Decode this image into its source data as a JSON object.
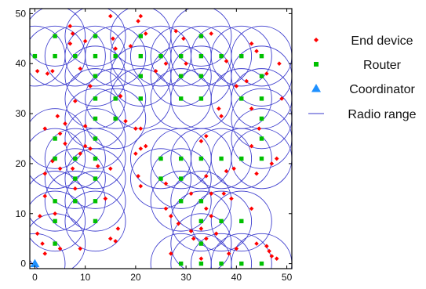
{
  "chart_data": {
    "type": "scatter",
    "title": "",
    "xlabel": "",
    "ylabel": "",
    "xlim": [
      -1,
      51
    ],
    "ylim": [
      -1,
      51
    ],
    "x_ticks": [
      0,
      10,
      20,
      30,
      40,
      50
    ],
    "y_ticks": [
      0,
      10,
      20,
      30,
      40,
      50
    ],
    "grid": false,
    "legend_position": "right",
    "radio_range_radius": 6,
    "legend": [
      {
        "key": "end_device",
        "label": "End device",
        "marker": "diamond",
        "color": "#ff0000"
      },
      {
        "key": "router",
        "label": "Router",
        "marker": "square",
        "color": "#00c000"
      },
      {
        "key": "coordinator",
        "label": "Coordinator",
        "marker": "triangle",
        "color": "#1e90ff"
      },
      {
        "key": "radio_range",
        "label": "Radio range",
        "marker": "line",
        "color": "#3a3acd"
      }
    ],
    "coordinator": [
      {
        "x": 0,
        "y": 0
      }
    ],
    "routers": [
      {
        "x": 0,
        "y": 41.5
      },
      {
        "x": 4,
        "y": 45.5
      },
      {
        "x": 4,
        "y": 41.5
      },
      {
        "x": 8,
        "y": 41.5
      },
      {
        "x": 12,
        "y": 45.5
      },
      {
        "x": 12,
        "y": 41.5
      },
      {
        "x": 12,
        "y": 37.5
      },
      {
        "x": 16,
        "y": 41.5
      },
      {
        "x": 21,
        "y": 45.5
      },
      {
        "x": 21,
        "y": 41.5
      },
      {
        "x": 21,
        "y": 37.5
      },
      {
        "x": 25,
        "y": 41.5
      },
      {
        "x": 29,
        "y": 41.5
      },
      {
        "x": 29,
        "y": 37.5
      },
      {
        "x": 33,
        "y": 45.5
      },
      {
        "x": 33,
        "y": 41.5
      },
      {
        "x": 33,
        "y": 37.5
      },
      {
        "x": 37,
        "y": 41.5
      },
      {
        "x": 41,
        "y": 41.5
      },
      {
        "x": 45,
        "y": 41.5
      },
      {
        "x": 45,
        "y": 37.5
      },
      {
        "x": 12,
        "y": 33
      },
      {
        "x": 16,
        "y": 33
      },
      {
        "x": 21,
        "y": 33
      },
      {
        "x": 29,
        "y": 33
      },
      {
        "x": 33,
        "y": 33
      },
      {
        "x": 41,
        "y": 33
      },
      {
        "x": 45,
        "y": 33
      },
      {
        "x": 12,
        "y": 29
      },
      {
        "x": 16,
        "y": 29
      },
      {
        "x": 45,
        "y": 29
      },
      {
        "x": 4,
        "y": 25
      },
      {
        "x": 12,
        "y": 25
      },
      {
        "x": 45,
        "y": 25
      },
      {
        "x": 4,
        "y": 21
      },
      {
        "x": 8,
        "y": 21
      },
      {
        "x": 12,
        "y": 21
      },
      {
        "x": 25,
        "y": 21
      },
      {
        "x": 29,
        "y": 21
      },
      {
        "x": 33,
        "y": 21
      },
      {
        "x": 37,
        "y": 21
      },
      {
        "x": 41,
        "y": 21
      },
      {
        "x": 45,
        "y": 21
      },
      {
        "x": 8,
        "y": 17
      },
      {
        "x": 12,
        "y": 17
      },
      {
        "x": 25,
        "y": 17
      },
      {
        "x": 29,
        "y": 17
      },
      {
        "x": 4,
        "y": 12.5
      },
      {
        "x": 8,
        "y": 12.5
      },
      {
        "x": 12,
        "y": 12.5
      },
      {
        "x": 29,
        "y": 12.5
      },
      {
        "x": 33,
        "y": 12.5
      },
      {
        "x": 4,
        "y": 8.5
      },
      {
        "x": 12,
        "y": 8.5
      },
      {
        "x": 33,
        "y": 8.5
      },
      {
        "x": 37,
        "y": 8.5
      },
      {
        "x": 41,
        "y": 8.5
      },
      {
        "x": 4,
        "y": 4
      },
      {
        "x": 33,
        "y": 4
      },
      {
        "x": 29,
        "y": 0
      },
      {
        "x": 33,
        "y": 0
      },
      {
        "x": 37,
        "y": 0
      },
      {
        "x": 41,
        "y": 0
      },
      {
        "x": 45,
        "y": 0
      }
    ],
    "end_devices": [
      {
        "x": 0.5,
        "y": 38.5
      },
      {
        "x": 2.5,
        "y": 38
      },
      {
        "x": 3.5,
        "y": 38.5
      },
      {
        "x": 7,
        "y": 47.5
      },
      {
        "x": 7.5,
        "y": 46
      },
      {
        "x": 7,
        "y": 44
      },
      {
        "x": 9,
        "y": 39
      },
      {
        "x": 10,
        "y": 44.5
      },
      {
        "x": 15,
        "y": 49.5
      },
      {
        "x": 15.5,
        "y": 45
      },
      {
        "x": 16,
        "y": 43
      },
      {
        "x": 20.5,
        "y": 48.5
      },
      {
        "x": 21,
        "y": 49.5
      },
      {
        "x": 22,
        "y": 46
      },
      {
        "x": 19,
        "y": 43.5
      },
      {
        "x": 24,
        "y": 38.5
      },
      {
        "x": 26,
        "y": 40
      },
      {
        "x": 28,
        "y": 46.5
      },
      {
        "x": 29.5,
        "y": 45
      },
      {
        "x": 30,
        "y": 40
      },
      {
        "x": 35,
        "y": 46
      },
      {
        "x": 38,
        "y": 40.5
      },
      {
        "x": 43,
        "y": 44
      },
      {
        "x": 44,
        "y": 42.5
      },
      {
        "x": 46,
        "y": 38
      },
      {
        "x": 48.5,
        "y": 40
      },
      {
        "x": 40,
        "y": 35.5
      },
      {
        "x": 42,
        "y": 36.5
      },
      {
        "x": 36.5,
        "y": 31
      },
      {
        "x": 37,
        "y": 29.5
      },
      {
        "x": 43,
        "y": 31
      },
      {
        "x": 44.5,
        "y": 27
      },
      {
        "x": 49,
        "y": 33
      },
      {
        "x": 8,
        "y": 32.5
      },
      {
        "x": 11,
        "y": 35.5
      },
      {
        "x": 17,
        "y": 33.5
      },
      {
        "x": 18,
        "y": 28.5
      },
      {
        "x": 20,
        "y": 27
      },
      {
        "x": 21,
        "y": 27
      },
      {
        "x": 10,
        "y": 27.5
      },
      {
        "x": 2,
        "y": 27
      },
      {
        "x": 4.5,
        "y": 29.5
      },
      {
        "x": 6,
        "y": 28
      },
      {
        "x": 5,
        "y": 26
      },
      {
        "x": 6,
        "y": 24
      },
      {
        "x": 3.5,
        "y": 20.5
      },
      {
        "x": 5,
        "y": 19
      },
      {
        "x": 2,
        "y": 18
      },
      {
        "x": 9,
        "y": 22
      },
      {
        "x": 10,
        "y": 23.5
      },
      {
        "x": 11,
        "y": 23
      },
      {
        "x": 12.5,
        "y": 19.5
      },
      {
        "x": 7.5,
        "y": 19
      },
      {
        "x": 15,
        "y": 19
      },
      {
        "x": 8,
        "y": 15
      },
      {
        "x": 2,
        "y": 13.5
      },
      {
        "x": 1,
        "y": 9.5
      },
      {
        "x": 4,
        "y": 10
      },
      {
        "x": 0.5,
        "y": 6
      },
      {
        "x": 1.5,
        "y": 4
      },
      {
        "x": 2,
        "y": 2
      },
      {
        "x": 5,
        "y": 3
      },
      {
        "x": 9,
        "y": 3
      },
      {
        "x": 16.5,
        "y": 7
      },
      {
        "x": 15,
        "y": 5
      },
      {
        "x": 16,
        "y": 4.5
      },
      {
        "x": 14,
        "y": 13
      },
      {
        "x": 20,
        "y": 22
      },
      {
        "x": 21,
        "y": 23
      },
      {
        "x": 22,
        "y": 23.5
      },
      {
        "x": 20.5,
        "y": 17.5
      },
      {
        "x": 21,
        "y": 15.5
      },
      {
        "x": 26,
        "y": 16
      },
      {
        "x": 26,
        "y": 11
      },
      {
        "x": 27,
        "y": 9.5
      },
      {
        "x": 28.5,
        "y": 8
      },
      {
        "x": 31,
        "y": 14
      },
      {
        "x": 33,
        "y": 24.5
      },
      {
        "x": 34,
        "y": 25.5
      },
      {
        "x": 34,
        "y": 17.5
      },
      {
        "x": 35,
        "y": 14
      },
      {
        "x": 34,
        "y": 11
      },
      {
        "x": 35,
        "y": 9.5
      },
      {
        "x": 33,
        "y": 7
      },
      {
        "x": 34,
        "y": 5
      },
      {
        "x": 31,
        "y": 6.5
      },
      {
        "x": 31.5,
        "y": 5
      },
      {
        "x": 36,
        "y": 6
      },
      {
        "x": 37.5,
        "y": 14
      },
      {
        "x": 39,
        "y": 13
      },
      {
        "x": 38,
        "y": 18.5
      },
      {
        "x": 39.5,
        "y": 19
      },
      {
        "x": 44,
        "y": 18
      },
      {
        "x": 43,
        "y": 23.5
      },
      {
        "x": 47,
        "y": 20
      },
      {
        "x": 48,
        "y": 21
      },
      {
        "x": 43,
        "y": 11
      },
      {
        "x": 44,
        "y": 4
      },
      {
        "x": 46.5,
        "y": 2.5
      },
      {
        "x": 47,
        "y": 1.5
      },
      {
        "x": 48,
        "y": 1
      },
      {
        "x": 46,
        "y": 3.5
      },
      {
        "x": 27,
        "y": 2
      },
      {
        "x": 33,
        "y": 1
      },
      {
        "x": 38.5,
        "y": 2
      },
      {
        "x": 40,
        "y": 3
      }
    ]
  }
}
